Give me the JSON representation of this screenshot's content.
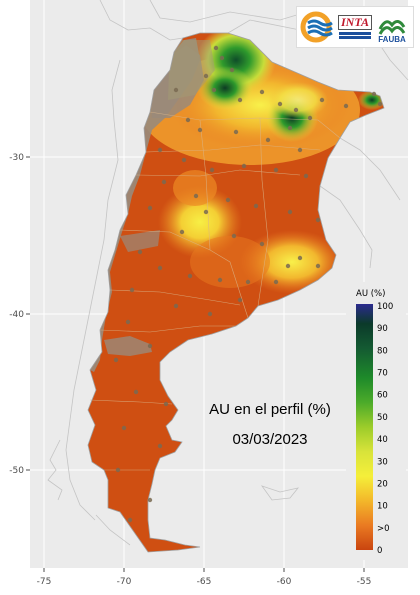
{
  "map": {
    "title": "AU en el perfil (%)",
    "date": "03/03/2023",
    "x_ticks": [
      "-75",
      "-70",
      "-65",
      "-60",
      "-55"
    ],
    "y_ticks": [
      "-30",
      "-40",
      "-50"
    ],
    "logos": {
      "left": "blue-orange-wave-logo",
      "inta": "INTA",
      "fauba": "FAUBA"
    },
    "legend": {
      "title": "AU (%)",
      "labels": [
        "100",
        "90",
        "80",
        "70",
        "60",
        "50",
        "40",
        "30",
        "20",
        "10",
        ">0",
        "0"
      ],
      "colors": [
        "#2b2a8e",
        "#0b3a2a",
        "#145a32",
        "#1e8a2a",
        "#4cab2a",
        "#9ccc2a",
        "#d8e33a",
        "#f5ef3a",
        "#f3b72a",
        "#ea7a22",
        "#d9581a",
        "#c9440f"
      ]
    },
    "colors": {
      "background": "#ebebeb",
      "grid": "#ffffff",
      "dry": "#cf4f12",
      "mountain": "#9a8a7a",
      "country_border": "#bdbdbd"
    }
  }
}
